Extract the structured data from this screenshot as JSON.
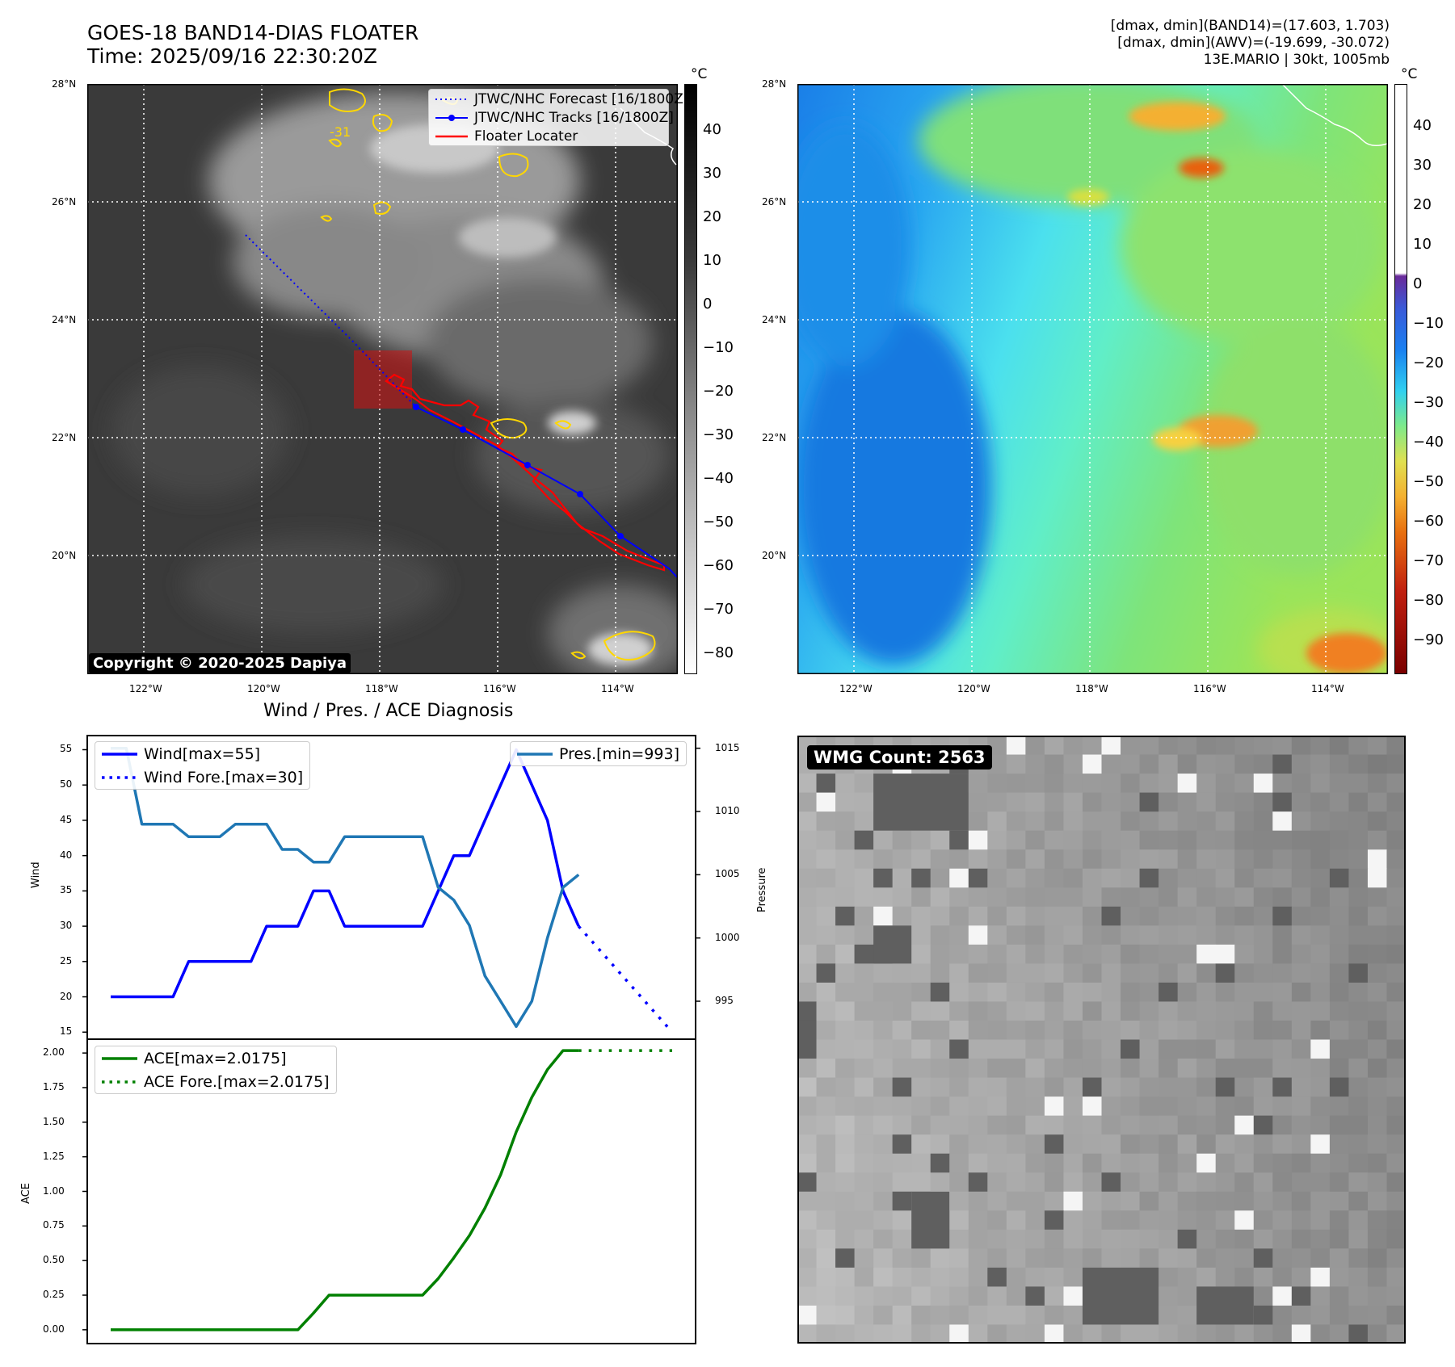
{
  "header": {
    "title_line1": "GOES-18 BAND14-DIAS FLOATER",
    "title_line2": "Time: 2025/09/16 22:30:20Z",
    "info_line1": "[dmax, dmin](BAND14)=(17.603, 1.703)",
    "info_line2": "[dmax, dmin](AWV)=(-19.699, -30.072)",
    "info_line3": "13E.MARIO | 30kt, 1005mb"
  },
  "map": {
    "lat_labels": [
      "28°N",
      "26°N",
      "24°N",
      "22°N",
      "20°N"
    ],
    "lon_labels": [
      "122°W",
      "120°W",
      "118°W",
      "116°W",
      "114°W"
    ],
    "contour_label": "-31",
    "copyright": "Copyright © 2020-2025 Dapiya",
    "legend": {
      "forecast": "JTWC/NHC Forecast [16/1800Z]",
      "tracks": "JTWC/NHC Tracks [16/1800Z]",
      "floater": "Floater Locater"
    },
    "colors": {
      "forecast": "#0000ff",
      "track": "#0000ff",
      "floater": "#ff0000",
      "contour": "#ffd700"
    }
  },
  "colorbar_ir": {
    "unit": "°C",
    "ticks": [
      "40",
      "30",
      "20",
      "10",
      "0",
      "−10",
      "−20",
      "−30",
      "−40",
      "−50",
      "−60",
      "−70",
      "−80"
    ]
  },
  "colorbar_wv": {
    "unit": "°C",
    "ticks": [
      "40",
      "30",
      "20",
      "10",
      "0",
      "−10",
      "−20",
      "−30",
      "−40",
      "−50",
      "−60",
      "−70",
      "−80",
      "−90"
    ]
  },
  "wmg": {
    "label": "WMG Count: 2563"
  },
  "diagnosis": {
    "title": "Wind / Pres. / ACE Diagnosis",
    "wind_ylabel": "Wind",
    "pres_ylabel": "Pressure",
    "ace_ylabel": "ACE",
    "wind_ticks": [
      "55",
      "50",
      "45",
      "40",
      "35",
      "30",
      "25",
      "20",
      "15"
    ],
    "pres_ticks": [
      "1015",
      "1010",
      "1005",
      "1000",
      "995"
    ],
    "ace_ticks": [
      "2.00",
      "1.75",
      "1.50",
      "1.25",
      "1.00",
      "0.75",
      "0.50",
      "0.25",
      "0.00"
    ],
    "legend": {
      "wind": "Wind[max=55]",
      "wind_fore": "Wind Fore.[max=30]",
      "pres": "Pres.[min=993]",
      "ace": "ACE[max=2.0175]",
      "ace_fore": "ACE Fore.[max=2.0175]"
    }
  },
  "chart_data": [
    {
      "type": "line",
      "title": "Wind / Pres. / ACE Diagnosis",
      "ylabel": "Wind",
      "ylim": [
        14,
        57
      ],
      "series": [
        {
          "name": "Wind[max=55]",
          "color": "#0000ff",
          "style": "solid",
          "x": [
            0,
            1,
            2,
            3,
            4,
            5,
            6,
            7,
            8,
            9,
            10,
            11,
            12,
            13,
            14,
            15,
            16,
            17,
            18,
            19,
            20,
            21,
            22,
            23,
            24,
            25,
            26,
            27,
            28,
            29,
            30
          ],
          "values": [
            20,
            20,
            20,
            20,
            20,
            25,
            25,
            25,
            25,
            25,
            30,
            30,
            30,
            35,
            35,
            30,
            30,
            30,
            30,
            30,
            30,
            35,
            40,
            40,
            45,
            50,
            55,
            50,
            45,
            35,
            30
          ]
        },
        {
          "name": "Wind Fore.[max=30]",
          "color": "#0000ff",
          "style": "dotted",
          "x": [
            30,
            36
          ],
          "values": [
            30,
            15
          ]
        }
      ]
    },
    {
      "type": "line",
      "ylabel": "Pressure",
      "ylim": [
        992,
        1016
      ],
      "series": [
        {
          "name": "Pres.[min=993]",
          "color": "#1f77b4",
          "style": "solid",
          "x": [
            0,
            1,
            2,
            3,
            4,
            5,
            6,
            7,
            8,
            9,
            10,
            11,
            12,
            13,
            14,
            15,
            16,
            17,
            18,
            19,
            20,
            21,
            22,
            23,
            24,
            25,
            26,
            27,
            28,
            29,
            30
          ],
          "values": [
            1015,
            1015,
            1009,
            1009,
            1009,
            1008,
            1008,
            1008,
            1009,
            1009,
            1009,
            1007,
            1007,
            1006,
            1006,
            1008,
            1008,
            1008,
            1008,
            1008,
            1008,
            1004,
            1003,
            1001,
            997,
            995,
            993,
            995,
            1000,
            1004,
            1005
          ]
        }
      ]
    },
    {
      "type": "area",
      "ylabel": "ACE",
      "ylim": [
        -0.1,
        2.1
      ],
      "series": [
        {
          "name": "ACE[max=2.0175]",
          "color": "#008000",
          "style": "solid",
          "x": [
            0,
            1,
            2,
            3,
            4,
            5,
            6,
            7,
            8,
            9,
            10,
            11,
            12,
            13,
            14,
            15,
            16,
            17,
            18,
            19,
            20,
            21,
            22,
            23,
            24,
            25,
            26,
            27,
            28,
            29,
            30
          ],
          "values": [
            0,
            0,
            0,
            0,
            0,
            0,
            0,
            0,
            0,
            0,
            0,
            0,
            0,
            0.12,
            0.25,
            0.25,
            0.25,
            0.25,
            0.25,
            0.25,
            0.25,
            0.37,
            0.52,
            0.68,
            0.88,
            1.12,
            1.43,
            1.68,
            1.88,
            2.0175,
            2.0175
          ]
        },
        {
          "name": "ACE Fore.[max=2.0175]",
          "color": "#008000",
          "style": "dotted",
          "x": [
            30,
            36
          ],
          "values": [
            2.0175,
            2.0175
          ]
        }
      ]
    }
  ]
}
